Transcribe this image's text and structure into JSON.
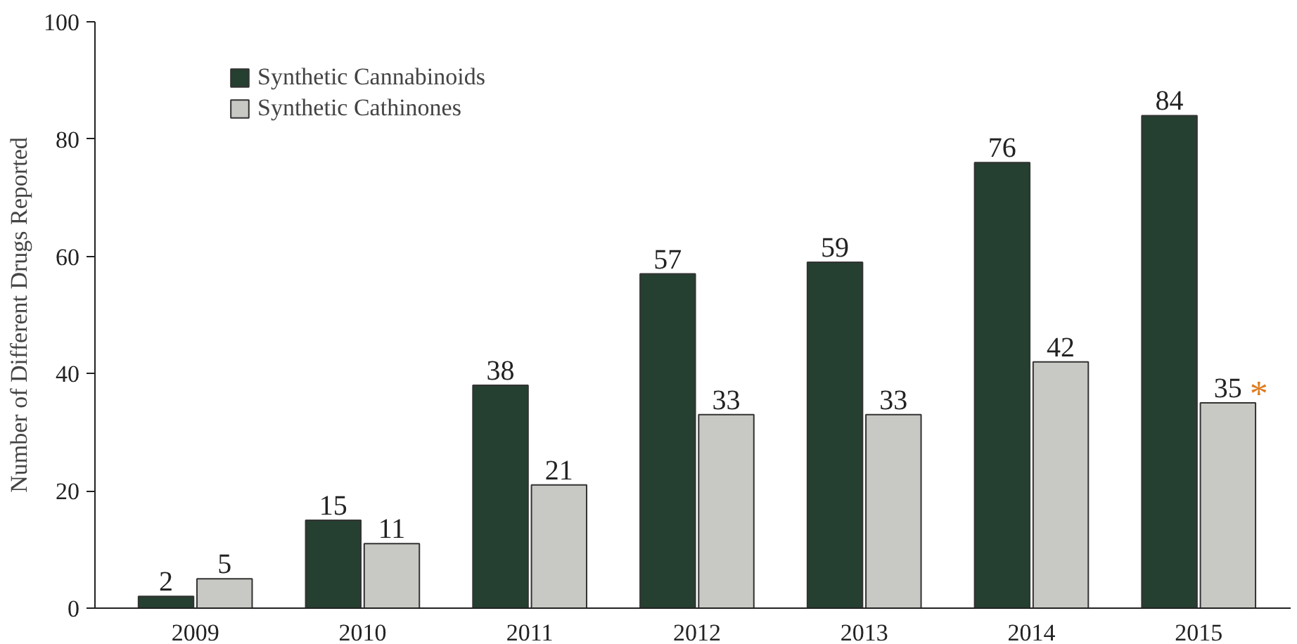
{
  "chart_data": {
    "type": "bar",
    "ylabel": "Number of Different Drugs Reported",
    "categories": [
      "2009",
      "2010",
      "2011",
      "2012",
      "2013",
      "2014",
      "2015"
    ],
    "series": [
      {
        "name": "Synthetic Cannabinoids",
        "color": "#253f30",
        "values": [
          2,
          15,
          38,
          57,
          59,
          76,
          84
        ]
      },
      {
        "name": "Synthetic Cathinones",
        "color": "#c8c9c4",
        "values": [
          5,
          11,
          21,
          33,
          33,
          42,
          35
        ]
      }
    ],
    "ylim": [
      0,
      100
    ],
    "yticks": [
      0,
      20,
      40,
      60,
      80,
      100
    ],
    "grid": false,
    "legend": "top left",
    "data_labels": true,
    "annotations": [
      {
        "text": "*",
        "x": "2015",
        "y": 35
      }
    ]
  }
}
